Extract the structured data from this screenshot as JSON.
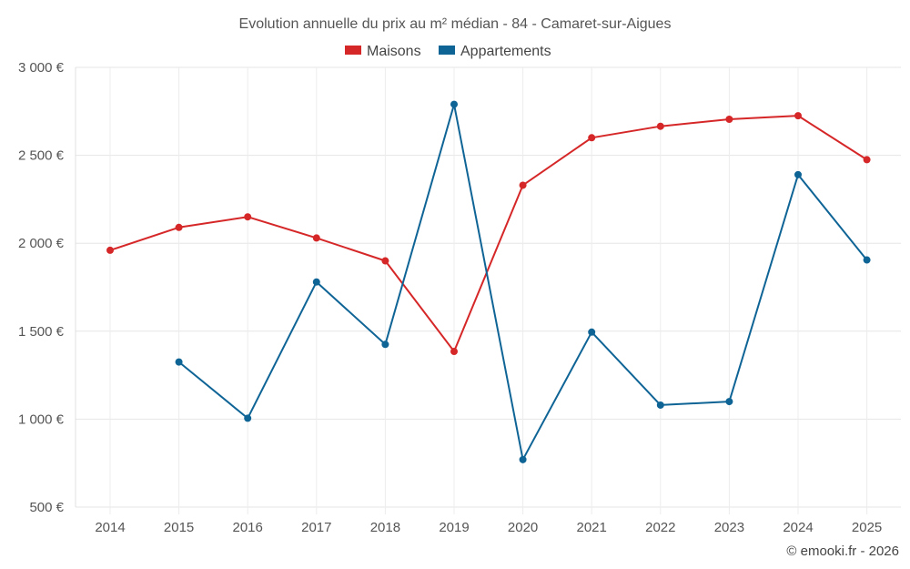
{
  "chart_data": {
    "type": "line",
    "title": "Evolution annuelle du prix au m² médian - 84 - Camaret-sur-Aigues",
    "categories": [
      "2014",
      "2015",
      "2016",
      "2017",
      "2018",
      "2019",
      "2020",
      "2021",
      "2022",
      "2023",
      "2024",
      "2025"
    ],
    "series": [
      {
        "name": "Maisons",
        "color": "#d62728",
        "values": [
          1960,
          2090,
          2150,
          2030,
          1900,
          1385,
          2330,
          2600,
          2665,
          2705,
          2725,
          2475
        ]
      },
      {
        "name": "Appartements",
        "color": "#0f6496",
        "values": [
          null,
          1325,
          1005,
          1780,
          1425,
          2790,
          770,
          1495,
          1080,
          1100,
          2390,
          1905
        ]
      }
    ],
    "ylim": [
      500,
      3000
    ],
    "yticks": [
      500,
      1000,
      1500,
      2000,
      2500,
      3000
    ],
    "ytick_labels": [
      "500 €",
      "1 000 €",
      "1 500 €",
      "2 000 €",
      "2 500 €",
      "3 000 €"
    ],
    "xlabel": "",
    "ylabel": "",
    "grid": true,
    "legend_position": "top-center"
  },
  "credit": "© emooki.fr - 2026"
}
